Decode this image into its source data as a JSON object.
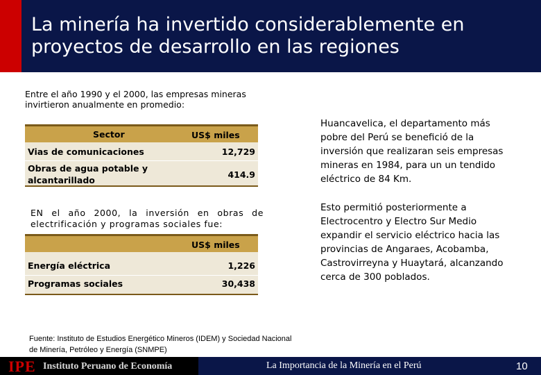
{
  "slide": {
    "title": "La minería ha invertido considerablemente en proyectos de desarrollo en las regiones"
  },
  "intro_text": "Entre el año 1990 y el 2000, las empresas mineras invirtieron anualmente en promedio:",
  "table1": {
    "header_sector": "Sector",
    "header_usd": "US$ miles",
    "rows": [
      {
        "label": "Vias de comunicaciones",
        "value": "12,729"
      },
      {
        "label": "Obras de agua potable y alcantarillado",
        "value": "414.9"
      }
    ]
  },
  "text2": "EN el año 2000, la inversión en obras de electrificación y programas sociales fue:",
  "table2": {
    "header_usd": "US$ miles",
    "rows": [
      {
        "label": "Energía eléctrica",
        "value": "1,226"
      },
      {
        "label": "Programas sociales",
        "value": "30,438"
      }
    ]
  },
  "right_text_1": "Huancavelica, el departamento más pobre del Perú se benefició de la inversión que realizaran seis empresas mineras en 1984, para un un tendido eléctrico de 84 Km.",
  "right_text_2": "Esto permitió posteriormente a Electrocentro y Electro Sur Medio expandir el servicio eléctrico hacia las provincias de Angaraes, Acobamba, Castrovirreyna y Huaytará, alcanzando cerca de 300 poblados.",
  "source": "Fuente: Instituto de Estudios Energético Mineros (IDEM) y Sociedad Nacional de Minería, Petróleo y Energía (SNMPE)",
  "footer": {
    "logo": "IPE",
    "institute": "Instituto Peruano de Economía",
    "presentation_title": "La Importancia de la Minería en el Perú",
    "page_number": "10"
  },
  "colors": {
    "header_bg": "#0a1648",
    "accent_red": "#cc0000",
    "table_header": "#c9a24a",
    "table_body": "#eee8d8"
  }
}
